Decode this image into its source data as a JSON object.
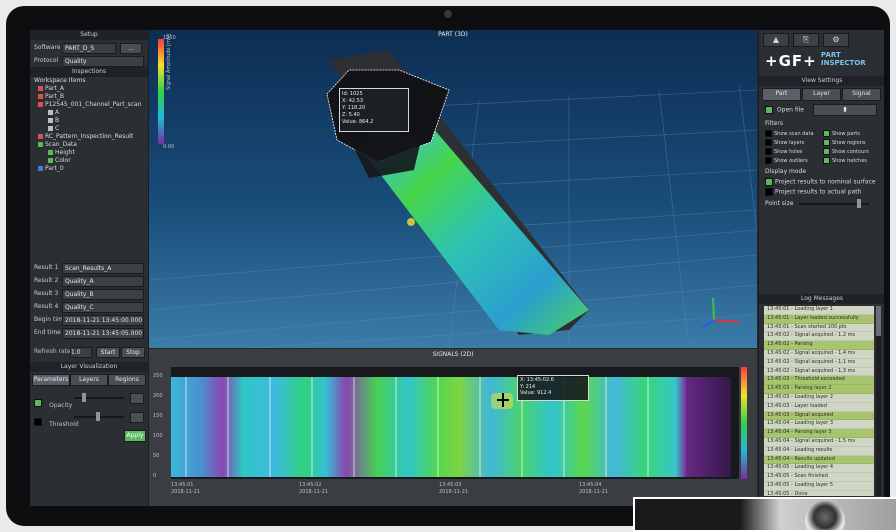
{
  "left_panel": {
    "header": "Setup",
    "field1": {
      "label": "Software",
      "value": "PART_D_S",
      "button": "..."
    },
    "field2": {
      "label": "Protocol",
      "value": "Quality"
    },
    "tree_header": "Inspections",
    "tree_title": "Workspace Items",
    "tree": [
      {
        "label": "Part_A",
        "color": "#d9534f"
      },
      {
        "label": "Part_B",
        "color": "#d9534f"
      },
      {
        "label": "P12545_001_Channel_Part_scan",
        "color": "#d9534f"
      },
      {
        "label": "A",
        "color": "#bfbfbf"
      },
      {
        "label": "B",
        "color": "#bfbfbf"
      },
      {
        "label": "C",
        "color": "#bfbfbf"
      },
      {
        "label": "RC_Pattern_Inspection_Result",
        "color": "#d9534f"
      },
      {
        "label": "Scan_Data",
        "color": "#5cb85c"
      },
      {
        "label": "Height",
        "color": "#5cb85c"
      },
      {
        "label": "Color",
        "color": "#5cb85c"
      },
      {
        "label": "Part_0",
        "color": "#3d7fd6"
      }
    ],
    "params": [
      {
        "label": "Result 1",
        "value": "Scan_Results_A"
      },
      {
        "label": "Result 2",
        "value": "Quality_A"
      },
      {
        "label": "Result 3",
        "value": "Quality_B"
      },
      {
        "label": "Result 4",
        "value": "Quality_C"
      },
      {
        "label": "Begin time",
        "value": "2018-11-21 13:45:00.000"
      },
      {
        "label": "End time",
        "value": "2018-11-21 13:45:05.000"
      }
    ],
    "refresh": {
      "label": "Refresh rate",
      "value": "1.0",
      "btn1": "Start",
      "btn2": "Stop"
    },
    "layer_header": "Layer Visualization",
    "tabs": [
      "Parameters",
      "Layers",
      "Regions"
    ],
    "sliders": [
      {
        "label": "Opacity"
      },
      {
        "label": "Threshold"
      }
    ],
    "apply": "Apply"
  },
  "view3d": {
    "title": "PART (3D)",
    "scale_top": "1250",
    "scale_bottom": "0.00",
    "scale_label": "Signal Amplitude [mV]",
    "tooltip": [
      "Id: 1025",
      "X: 42.53",
      "Y: 118.20",
      "Z: 5.40",
      "Value: 864.2"
    ],
    "axes": {
      "x_color": "#e8313a",
      "y_color": "#39c43d",
      "z_color": "#2f5fe0"
    }
  },
  "signals": {
    "title": "SIGNALS (2D)",
    "y_ticks": [
      "250",
      "200",
      "150",
      "100",
      "50",
      "0"
    ],
    "x_ticks": [
      "13:45:01",
      "13:45:02",
      "13:45:03",
      "13:45:04"
    ],
    "x_sub": [
      "2018-11-21",
      "2018-11-21",
      "2018-11-21",
      "2018-11-21"
    ],
    "tooltip": [
      "X: 13:45:02.6",
      "Y: 214",
      "Value: 912.4"
    ]
  },
  "right_panel": {
    "toolbar": [
      "▲",
      "⎘",
      "⚙"
    ],
    "brand": "+GF+",
    "product_line1": "PART",
    "product_line2": "INSPECTOR",
    "view_header": "View Settings",
    "view_modes": [
      "Part",
      "Layer",
      "Signal"
    ],
    "open_label": "Open file",
    "filters_label": "Filters",
    "filters": [
      {
        "label": "Show scan data",
        "color": "#000000"
      },
      {
        "label": "Show parts",
        "color": "#5cb85c"
      },
      {
        "label": "Show layers",
        "color": "#000000"
      },
      {
        "label": "Show regions",
        "color": "#5cb85c"
      },
      {
        "label": "Show holes",
        "color": "#000000"
      },
      {
        "label": "Show contours",
        "color": "#5cb85c"
      },
      {
        "label": "Show outliers",
        "color": "#000000"
      },
      {
        "label": "Show hatches",
        "color": "#5cb85c"
      }
    ],
    "display_label": "Display mode",
    "display_options": [
      "Project results to nominal surface",
      "Project results to actual path"
    ],
    "point_size_label": "Point size",
    "log_header": "Log Messages",
    "log": [
      {
        "text": "13:45:01 - Loading layer 1",
        "highlight": false
      },
      {
        "text": "13:45:01 - Layer loaded successfully",
        "highlight": true
      },
      {
        "text": "13:45:01 - Scan started 100 pts",
        "highlight": false
      },
      {
        "text": "13:45:02 - Signal acquired - 1.2 ms",
        "highlight": false
      },
      {
        "text": "13:45:02 - Parsing",
        "highlight": true
      },
      {
        "text": "13:45:02 - Signal acquired - 1.4 ms",
        "highlight": false
      },
      {
        "text": "13:45:02 - Signal acquired - 1.1 ms",
        "highlight": false
      },
      {
        "text": "13:45:02 - Signal acquired - 1.3 ms",
        "highlight": false
      },
      {
        "text": "13:45:03 - Threshold exceeded",
        "highlight": true
      },
      {
        "text": "13:45:03 - Parsing layer 2",
        "highlight": true
      },
      {
        "text": "13:45:03 - Loading layer 2",
        "highlight": false
      },
      {
        "text": "13:45:03 - Layer loaded",
        "highlight": false
      },
      {
        "text": "13:45:03 - Signal acquired",
        "highlight": true
      },
      {
        "text": "13:45:04 - Loading layer 3",
        "highlight": false
      },
      {
        "text": "13:45:04 - Parsing layer 3",
        "highlight": true
      },
      {
        "text": "13:45:04 - Signal acquired - 1.5 ms",
        "highlight": false
      },
      {
        "text": "13:45:04 - Loading results",
        "highlight": false
      },
      {
        "text": "13:45:04 - Results updated",
        "highlight": true
      },
      {
        "text": "13:45:05 - Loading layer 4",
        "highlight": false
      },
      {
        "text": "13:45:05 - Scan finished",
        "highlight": false
      },
      {
        "text": "13:45:05 - Loading layer 5",
        "highlight": false
      },
      {
        "text": "13:45:05 - Done",
        "highlight": false
      },
      {
        "text": "13:45:05 - Idle",
        "highlight": false
      },
      {
        "text": "13:45:05 - Ready",
        "highlight": false
      }
    ]
  }
}
